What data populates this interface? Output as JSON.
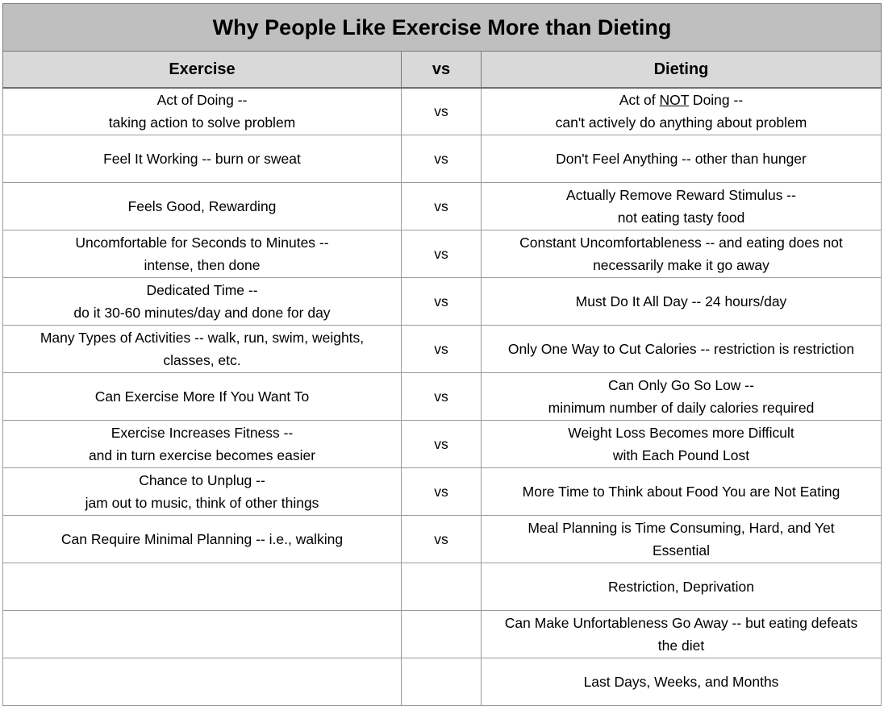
{
  "title": "Why People Like Exercise More than Dieting",
  "headers": {
    "exercise": "Exercise",
    "vs": "vs",
    "dieting": "Dieting"
  },
  "rows": [
    {
      "exercise": [
        "Act of Doing --",
        "taking action to solve problem"
      ],
      "vs": "vs",
      "dieting": [
        [
          "Act of ",
          "NOT",
          " Doing --"
        ],
        "can't actively do anything about problem"
      ]
    },
    {
      "exercise": [
        "Feel It Working -- burn or sweat"
      ],
      "vs": "vs",
      "dieting": [
        "Don't Feel Anything -- other than hunger"
      ]
    },
    {
      "exercise": [
        "Feels Good, Rewarding"
      ],
      "vs": "vs",
      "dieting": [
        "Actually Remove Reward Stimulus --",
        "not eating tasty food"
      ]
    },
    {
      "exercise": [
        "Uncomfortable for Seconds to Minutes --",
        "intense, then done"
      ],
      "vs": "vs",
      "dieting": [
        "Constant Uncomfortableness -- and eating does not",
        "necessarily make it go away"
      ]
    },
    {
      "exercise": [
        "Dedicated Time --",
        "do it 30-60 minutes/day and done for day"
      ],
      "vs": "vs",
      "dieting": [
        "Must Do It All Day -- 24 hours/day"
      ]
    },
    {
      "exercise": [
        "Many Types of Activities -- walk, run, swim, weights,",
        "classes, etc."
      ],
      "vs": "vs",
      "dieting": [
        "Only One Way to Cut Calories -- restriction is restriction"
      ]
    },
    {
      "exercise": [
        "Can Exercise More If You Want To"
      ],
      "vs": "vs",
      "dieting": [
        "Can Only Go So Low --",
        "minimum number of daily calories required"
      ]
    },
    {
      "exercise": [
        "Exercise Increases Fitness --",
        "and in turn exercise becomes easier"
      ],
      "vs": "vs",
      "dieting": [
        "Weight Loss Becomes more Difficult",
        "with Each Pound Lost"
      ]
    },
    {
      "exercise": [
        "Chance to Unplug --",
        "jam out to music, think of other things"
      ],
      "vs": "vs",
      "dieting": [
        "More Time to Think about Food You are Not Eating"
      ]
    },
    {
      "exercise": [
        "Can Require Minimal Planning -- i.e., walking"
      ],
      "vs": "vs",
      "dieting": [
        "Meal Planning is Time Consuming, Hard, and Yet",
        "Essential"
      ]
    },
    {
      "exercise": [],
      "vs": "",
      "dieting": [
        "Restriction, Deprivation"
      ]
    },
    {
      "exercise": [],
      "vs": "",
      "dieting": [
        "Can Make Unfortableness Go Away -- but eating defeats",
        "the diet"
      ]
    },
    {
      "exercise": [],
      "vs": "",
      "dieting": [
        "Last Days, Weeks, and Months"
      ]
    }
  ]
}
